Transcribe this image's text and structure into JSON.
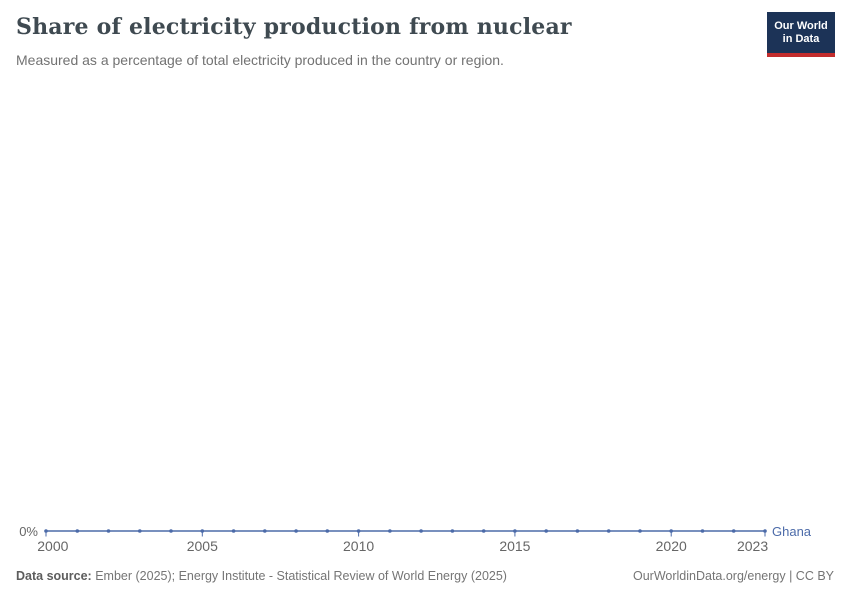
{
  "header": {
    "title": "Share of electricity production from nuclear",
    "subtitle": "Measured as a percentage of total electricity produced in the country or region.",
    "logo": {
      "line1": "Our World",
      "line2": "in Data",
      "bg_color": "#1c3357",
      "bar_color": "#c32d2d"
    }
  },
  "chart_data": {
    "type": "line",
    "title": "Share of electricity production from nuclear",
    "xlabel": "",
    "ylabel": "",
    "x": [
      2000,
      2001,
      2002,
      2003,
      2004,
      2005,
      2006,
      2007,
      2008,
      2009,
      2010,
      2011,
      2012,
      2013,
      2014,
      2015,
      2016,
      2017,
      2018,
      2019,
      2020,
      2021,
      2022,
      2023
    ],
    "series": [
      {
        "name": "Ghana",
        "color": "#4c6ba9",
        "values": [
          0,
          0,
          0,
          0,
          0,
          0,
          0,
          0,
          0,
          0,
          0,
          0,
          0,
          0,
          0,
          0,
          0,
          0,
          0,
          0,
          0,
          0,
          0,
          0
        ],
        "unit": "%"
      }
    ],
    "xlim": [
      2000,
      2023
    ],
    "ylim": [
      0,
      0
    ],
    "x_ticks": [
      2000,
      2005,
      2010,
      2015,
      2020,
      2023
    ],
    "x_tick_labels": [
      "2000",
      "2005",
      "2010",
      "2015",
      "2020",
      "2023"
    ],
    "y_axis": {
      "min": 0,
      "min_label": "0%"
    },
    "grid": false,
    "markers": true,
    "legend_position": "end-of-line"
  },
  "footer": {
    "source_label": "Data source:",
    "source_text": " Ember (2025); Energy Institute - Statistical Review of World Energy (2025)",
    "link_text": "OurWorldinData.org/energy | CC BY"
  },
  "colors": {
    "line": "#4c6ba9",
    "axis_text": "#666666",
    "title_text": "#3f4a51",
    "subtitle_text": "#727272",
    "footer_text": "#757575"
  }
}
